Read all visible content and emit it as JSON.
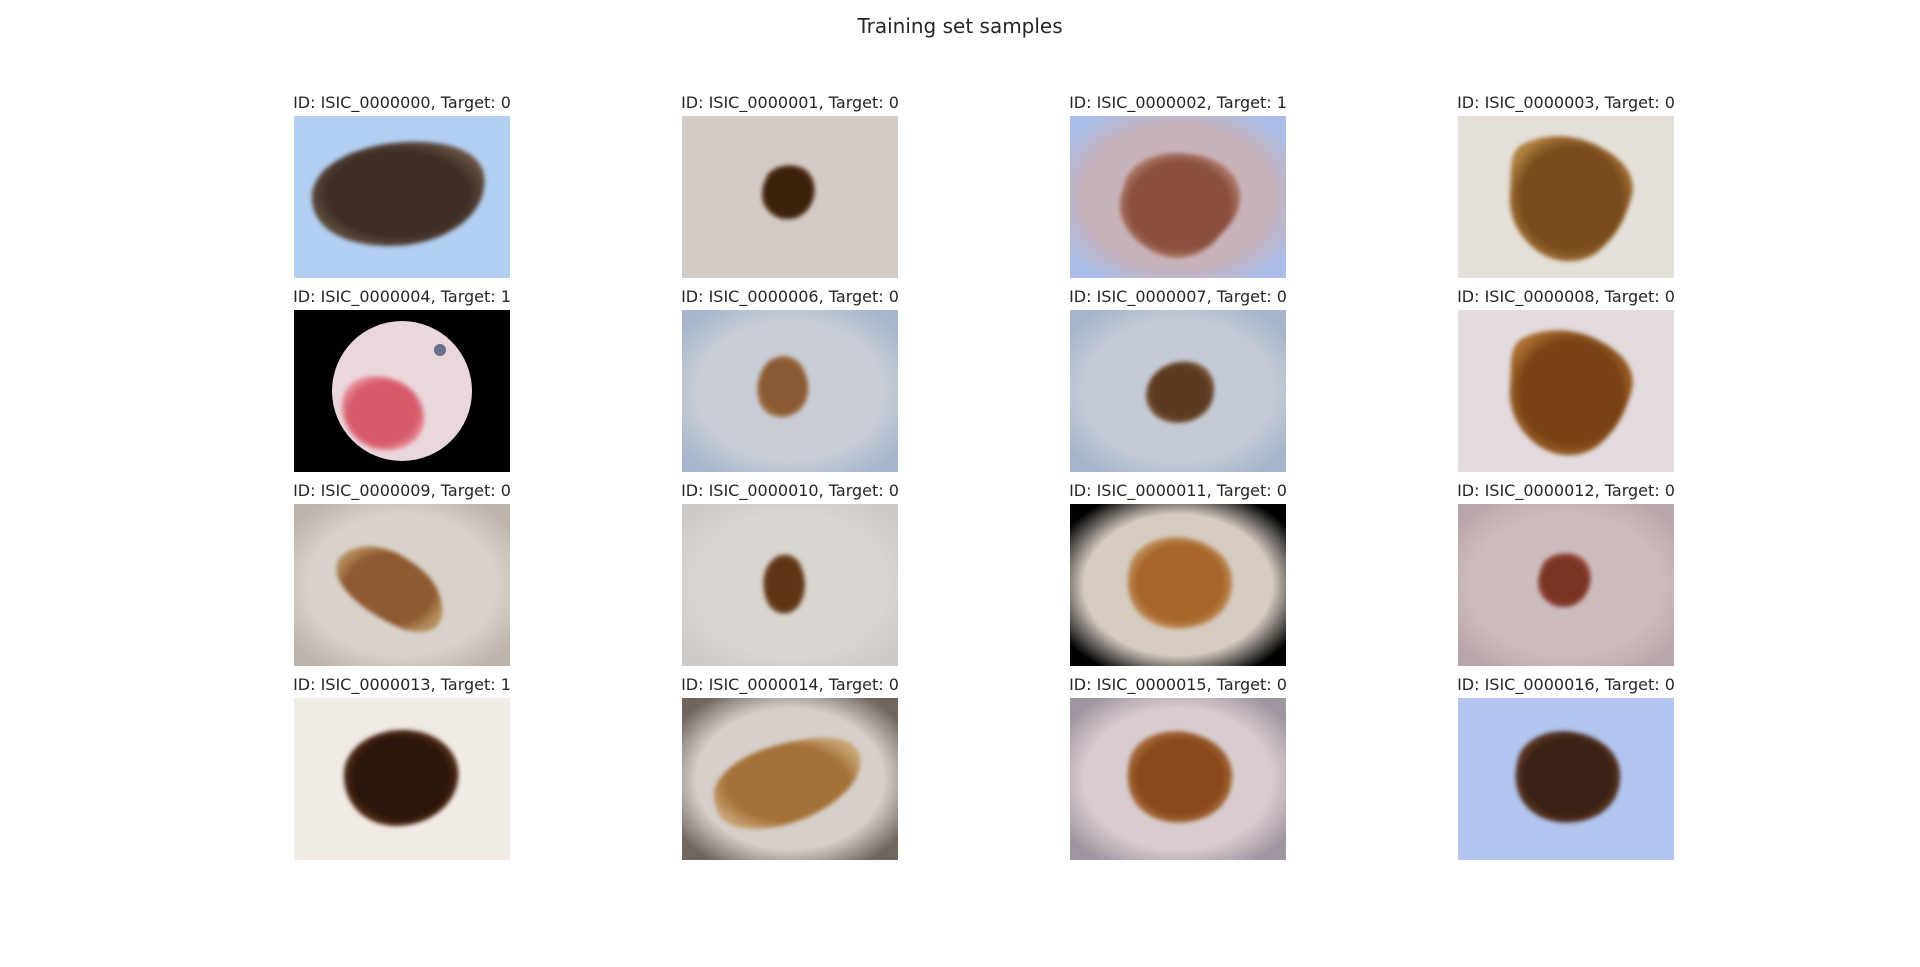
{
  "figure": {
    "title": "Training set samples"
  },
  "samples": [
    {
      "title": "ID: ISIC_0000000, Target: 0",
      "bg": "#b3cff2",
      "vignette": "none",
      "lesion": "#3e2f27",
      "lesion_edge": "#6a5546",
      "shape": "wide-oval",
      "skin": "#b3cff2"
    },
    {
      "title": "ID: ISIC_0000001, Target: 0",
      "bg": "#d3cbc6",
      "vignette": "none",
      "lesion": "#3a2010",
      "lesion_edge": "#6d4427",
      "shape": "small-round",
      "skin": "#d3cbc6"
    },
    {
      "title": "ID: ISIC_0000002, Target: 1",
      "bg": "#a9bde8",
      "vignette": "dark",
      "lesion": "#8a4f3e",
      "lesion_edge": "#b88774",
      "shape": "irregular",
      "skin": "#c8b2ba"
    },
    {
      "title": "ID: ISIC_0000003, Target: 0",
      "bg": "#e4dfd8",
      "vignette": "none",
      "lesion": "#7b4b1d",
      "lesion_edge": "#b08240",
      "shape": "large-irregular",
      "skin": "#e4dfd8"
    },
    {
      "title": "ID: ISIC_0000004, Target: 1",
      "bg": "#000000",
      "vignette": "scope",
      "lesion": "#d75a6a",
      "lesion_edge": "#ef9aa6",
      "shape": "scope-red",
      "skin": "#e9d7dc"
    },
    {
      "title": "ID: ISIC_0000006, Target: 0",
      "bg": "#a6b6cc",
      "vignette": "soft",
      "lesion": "#8a5a32",
      "lesion_edge": "#ad7f56",
      "shape": "small-irregular",
      "skin": "#c8cdd6"
    },
    {
      "title": "ID: ISIC_0000007, Target: 0",
      "bg": "#a5b4ca",
      "vignette": "soft",
      "lesion": "#5a3a22",
      "lesion_edge": "#8a6648",
      "shape": "small-oval",
      "skin": "#c5cbd6"
    },
    {
      "title": "ID: ISIC_0000008, Target: 0",
      "bg": "#e2dade",
      "vignette": "none",
      "lesion": "#7a4316",
      "lesion_edge": "#ad7032",
      "shape": "large-irregular",
      "skin": "#e2d8dc"
    },
    {
      "title": "ID: ISIC_0000009, Target: 0",
      "bg": "#bdb5ad",
      "vignette": "soft",
      "lesion": "#8e5a30",
      "lesion_edge": "#b38b5a",
      "shape": "diagonal",
      "skin": "#d8d2ca"
    },
    {
      "title": "ID: ISIC_0000010, Target: 0",
      "bg": "#cfcac5",
      "vignette": "light",
      "lesion": "#5b3518",
      "lesion_edge": "#8c6440",
      "shape": "small-speckled",
      "skin": "#dad5d0"
    },
    {
      "title": "ID: ISIC_0000011, Target: 0",
      "bg": "#000000",
      "vignette": "dark",
      "lesion": "#a8662a",
      "lesion_edge": "#c9a070",
      "shape": "medium-irregular",
      "skin": "#d6ccc2"
    },
    {
      "title": "ID: ISIC_0000012, Target: 0",
      "bg": "#b9a6aa",
      "vignette": "soft",
      "lesion": "#7a3424",
      "lesion_edge": "#a8605a",
      "shape": "small-round",
      "skin": "#cdbcbe"
    },
    {
      "title": "ID: ISIC_0000013, Target: 1",
      "bg": "#f1ebe6",
      "vignette": "none",
      "lesion": "#2a160c",
      "lesion_edge": "#6a3a1e",
      "shape": "medium-oval",
      "skin": "#f1ebe6"
    },
    {
      "title": "ID: ISIC_0000014, Target: 0",
      "bg": "#6e665f",
      "vignette": "dark",
      "lesion": "#a47138",
      "lesion_edge": "#c5a070",
      "shape": "wide-diagonal",
      "skin": "#d7cfca"
    },
    {
      "title": "ID: ISIC_0000015, Target: 0",
      "bg": "#9e95a0",
      "vignette": "soft",
      "lesion": "#8a4a1c",
      "lesion_edge": "#b27c4c",
      "shape": "medium-irregular",
      "skin": "#d9ccd0"
    },
    {
      "title": "ID: ISIC_0000016, Target: 0",
      "bg": "#b2c6f0",
      "vignette": "none",
      "lesion": "#3a2114",
      "lesion_edge": "#6a4430",
      "shape": "medium-irregular",
      "skin": "#b2c6f0"
    }
  ]
}
